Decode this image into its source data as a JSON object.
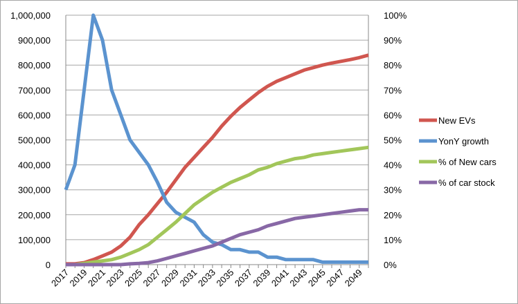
{
  "chart_data": {
    "type": "line",
    "title": "",
    "xlabel": "",
    "ylabel": "",
    "y2label": "",
    "grid": true,
    "legend_position": "right",
    "x": [
      2017,
      2018,
      2019,
      2020,
      2021,
      2022,
      2023,
      2024,
      2025,
      2026,
      2027,
      2028,
      2029,
      2030,
      2031,
      2032,
      2033,
      2034,
      2035,
      2036,
      2037,
      2038,
      2039,
      2040,
      2041,
      2042,
      2043,
      2044,
      2045,
      2046,
      2047,
      2048,
      2049,
      2050
    ],
    "x_tick_labels": [
      "2017",
      "2019",
      "2021",
      "2023",
      "2025",
      "2027",
      "2029",
      "2031",
      "2033",
      "2035",
      "2037",
      "2039",
      "2041",
      "2043",
      "2045",
      "2047",
      "2049"
    ],
    "ylim": [
      0,
      1000000
    ],
    "y_tick_labels": [
      "0",
      "100,000",
      "200,000",
      "300,000",
      "400,000",
      "500,000",
      "600,000",
      "700,000",
      "800,000",
      "900,000",
      "1,000,000"
    ],
    "y2lim": [
      0,
      100
    ],
    "y2_tick_labels": [
      "0%",
      "10%",
      "20%",
      "30%",
      "40%",
      "50%",
      "60%",
      "70%",
      "80%",
      "90%",
      "100%"
    ],
    "series": [
      {
        "name": "New EVs",
        "axis": "left",
        "color": "#d0564f",
        "values": [
          3000,
          3000,
          8000,
          20000,
          35000,
          50000,
          75000,
          110000,
          160000,
          200000,
          245000,
          290000,
          340000,
          390000,
          430000,
          470000,
          510000,
          555000,
          595000,
          630000,
          660000,
          690000,
          715000,
          735000,
          750000,
          765000,
          780000,
          790000,
          800000,
          808000,
          815000,
          822000,
          830000,
          840000
        ]
      },
      {
        "name": "YonY growth",
        "axis": "right",
        "color": "#5b93cf",
        "values": [
          30,
          40,
          70,
          100,
          90,
          70,
          60,
          50,
          45,
          40,
          33,
          25,
          21,
          19,
          17,
          12,
          9,
          8,
          6,
          6,
          5,
          5,
          3,
          3,
          2,
          2,
          2,
          2,
          1,
          1,
          1,
          1,
          1,
          1
        ]
      },
      {
        "name": "% of New cars",
        "axis": "right",
        "color": "#a2c65a",
        "values": [
          0,
          0,
          0.5,
          1,
          1.5,
          2,
          3,
          4.5,
          6,
          8,
          11,
          14,
          17,
          20.5,
          24,
          26.5,
          29,
          31,
          33,
          34.5,
          36,
          38,
          39,
          40.5,
          41.5,
          42.5,
          43,
          44,
          44.5,
          45,
          45.5,
          46,
          46.5,
          47
        ]
      },
      {
        "name": "% of car stock",
        "axis": "right",
        "color": "#8868a6",
        "values": [
          0,
          0,
          0,
          0,
          0,
          0,
          0,
          0.3,
          0.5,
          0.8,
          1.5,
          2.5,
          3.5,
          4.5,
          5.5,
          6.5,
          7.5,
          9,
          10.5,
          12,
          13,
          14,
          15.5,
          16.5,
          17.5,
          18.5,
          19,
          19.5,
          20,
          20.5,
          21,
          21.5,
          22,
          22
        ]
      }
    ]
  }
}
